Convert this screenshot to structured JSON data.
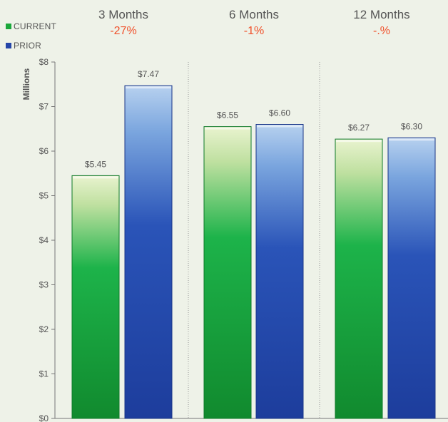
{
  "legend": [
    {
      "label": "CURRENT",
      "color": "#1aa83a"
    },
    {
      "label": "PRIOR",
      "color": "#2546a8"
    }
  ],
  "chart_data": {
    "type": "bar",
    "ylabel": "Millions",
    "ylim": [
      0,
      8
    ],
    "yticks": [
      "$0",
      "$1",
      "$2",
      "$3",
      "$4",
      "$5",
      "$6",
      "$7",
      "$8"
    ],
    "groups": [
      {
        "title": "3 Months",
        "change": "-27%"
      },
      {
        "title": "6 Months",
        "change": "-1%"
      },
      {
        "title": "12 Months",
        "change": "-.%"
      }
    ],
    "series": [
      {
        "name": "CURRENT",
        "values": [
          5.45,
          6.55,
          6.27
        ],
        "labels": [
          "$5.45",
          "$6.55",
          "$6.27"
        ],
        "color": "#1aa83a"
      },
      {
        "name": "PRIOR",
        "values": [
          7.47,
          6.6,
          6.3
        ],
        "labels": [
          "$7.47",
          "$6.60",
          "$6.30"
        ],
        "color": "#2546a8"
      }
    ],
    "change_color": "#f0502a",
    "grid": false,
    "legend_position": "top-left"
  }
}
